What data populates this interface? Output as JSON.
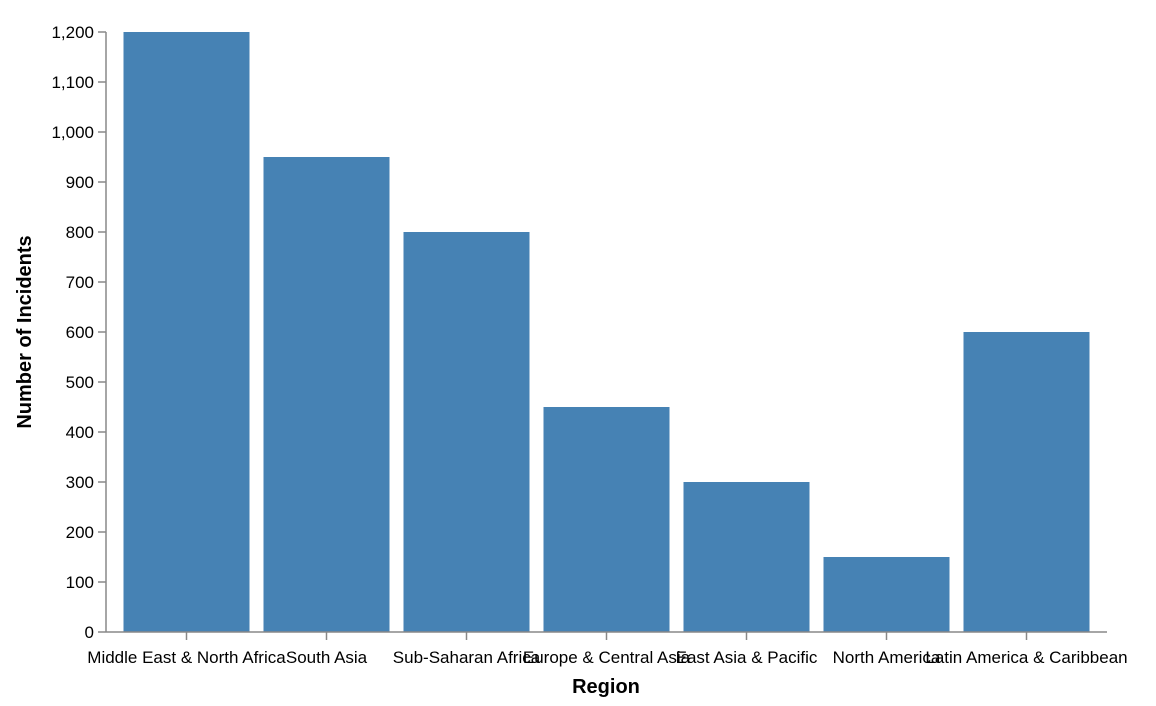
{
  "chart_data": {
    "type": "bar",
    "title": "",
    "xlabel": "Region",
    "ylabel": "Number of Incidents",
    "categories": [
      "Middle East & North Africa",
      "South Asia",
      "Sub-Saharan Africa",
      "Europe & Central Asia",
      "East Asia & Pacific",
      "North America",
      "Latin America & Caribbean"
    ],
    "values": [
      1200,
      950,
      800,
      450,
      300,
      150,
      600
    ],
    "ylim": [
      0,
      1200
    ],
    "yticks": [
      0,
      100,
      200,
      300,
      400,
      500,
      600,
      700,
      800,
      900,
      1000,
      1100,
      1200
    ],
    "ytick_labels": [
      "0",
      "100",
      "200",
      "300",
      "400",
      "500",
      "600",
      "700",
      "800",
      "900",
      "1,000",
      "1,100",
      "1,200"
    ],
    "grid": false,
    "legend": "none",
    "bar_color": "#4682b4",
    "axis_color": "#888888"
  }
}
